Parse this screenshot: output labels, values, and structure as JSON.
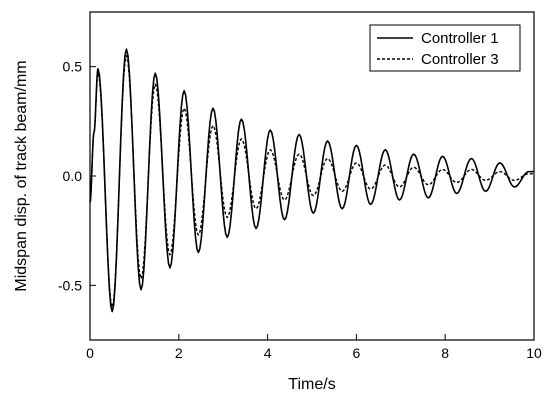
{
  "chart_data": {
    "type": "line",
    "title": "",
    "xlabel": "Time/s",
    "ylabel": "Midspan disp. of track beam/mm",
    "xlim": [
      0,
      10
    ],
    "ylim": [
      -0.75,
      0.75
    ],
    "xticks": [
      "0",
      "2",
      "4",
      "6",
      "8",
      "10"
    ],
    "yticks": [
      "-0.5",
      "0.0",
      "0.5"
    ],
    "grid": false,
    "legend_position": "top-right",
    "series": [
      {
        "name": "Controller 1",
        "style": "solid",
        "color": "#000000",
        "x": [
          0,
          0.09,
          0.18,
          0.5,
          0.82,
          1.15,
          1.47,
          1.8,
          2.12,
          2.44,
          2.77,
          3.09,
          3.41,
          3.74,
          4.06,
          4.38,
          4.71,
          5.03,
          5.35,
          5.68,
          6.0,
          6.32,
          6.65,
          6.97,
          7.29,
          7.62,
          7.94,
          8.26,
          8.59,
          8.91,
          9.23,
          9.56,
          9.88,
          10.0
        ],
        "y": [
          -0.12,
          0.2,
          0.49,
          -0.62,
          0.58,
          -0.52,
          0.47,
          -0.42,
          0.39,
          -0.35,
          0.31,
          -0.28,
          0.26,
          -0.24,
          0.21,
          -0.2,
          0.19,
          -0.17,
          0.16,
          -0.15,
          0.14,
          -0.13,
          0.12,
          -0.11,
          0.1,
          -0.1,
          0.09,
          -0.08,
          0.08,
          -0.07,
          0.06,
          -0.05,
          0.02,
          0.02
        ]
      },
      {
        "name": "Controller 3",
        "style": "dashed",
        "color": "#000000",
        "x": [
          0,
          0.09,
          0.18,
          0.5,
          0.82,
          1.15,
          1.47,
          1.8,
          2.12,
          2.44,
          2.77,
          3.09,
          3.41,
          3.74,
          4.06,
          4.38,
          4.71,
          5.03,
          5.35,
          5.68,
          6.0,
          6.32,
          6.65,
          6.97,
          7.29,
          7.62,
          7.94,
          8.26,
          8.59,
          8.91,
          9.23,
          9.56,
          9.88,
          10.0
        ],
        "y": [
          -0.12,
          0.2,
          0.47,
          -0.6,
          0.55,
          -0.47,
          0.42,
          -0.36,
          0.31,
          -0.27,
          0.23,
          -0.19,
          0.17,
          -0.15,
          0.12,
          -0.11,
          0.1,
          -0.09,
          0.08,
          -0.07,
          0.06,
          -0.06,
          0.05,
          -0.05,
          0.04,
          -0.04,
          0.03,
          -0.03,
          0.03,
          -0.02,
          0.02,
          -0.02,
          0.01,
          0.01
        ]
      }
    ]
  }
}
